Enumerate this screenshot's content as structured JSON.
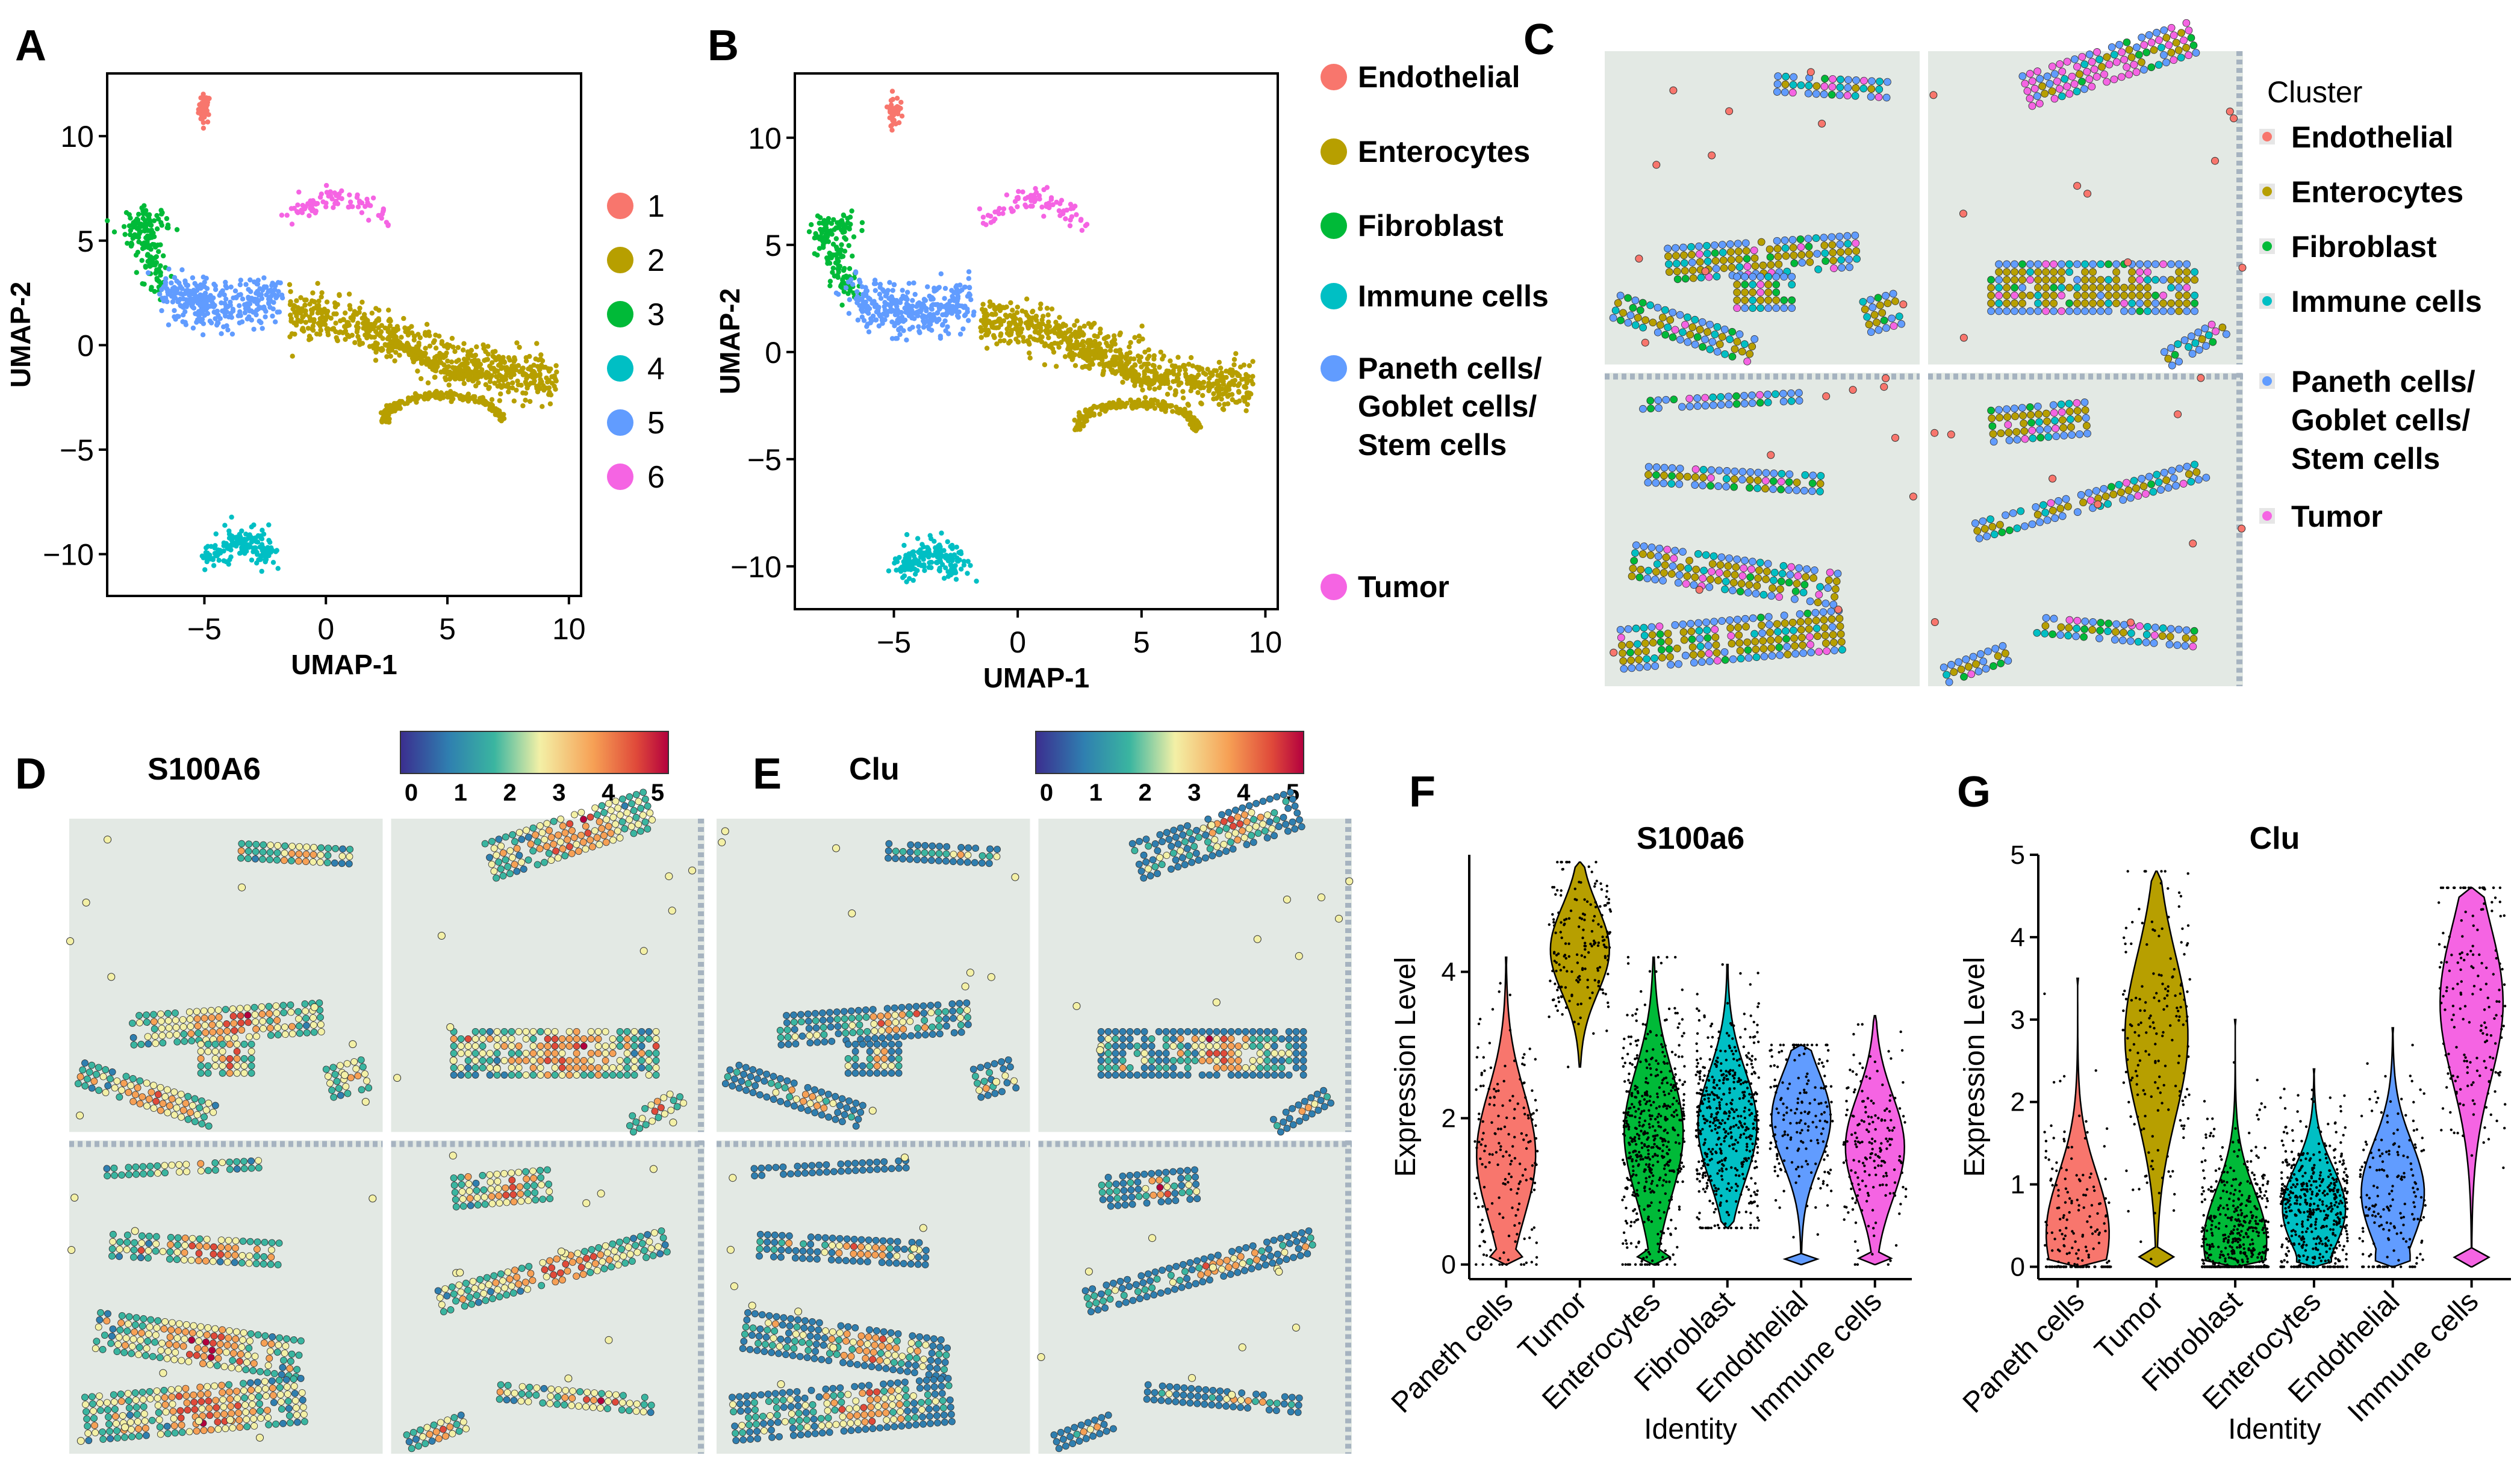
{
  "panel_labels": [
    "A",
    "B",
    "C",
    "D",
    "E",
    "F",
    "G"
  ],
  "colors": {
    "Endothelial": "#F8766D",
    "Enterocytes": "#B79F00",
    "Fibroblast": "#00BA38",
    "Immune cells": "#00BFC4",
    "Paneth": "#619CFF",
    "Tumor": "#F564E3",
    "tissue": "#dfe6e1"
  },
  "legend_B": {
    "items": [
      "Endothelial",
      "Enterocytes",
      "Fibroblast",
      "Immune cells",
      "Paneth cells/",
      "Goblet cells/",
      "Stem cells",
      "Tumor"
    ]
  },
  "legend_C": {
    "title": "Cluster",
    "items": [
      "Endothelial",
      "Enterocytes",
      "Fibroblast",
      "Immune cells",
      "Paneth cells/",
      "Goblet cells/",
      "Stem cells",
      "Tumor"
    ]
  },
  "legend_A": {
    "items": [
      "1",
      "2",
      "3",
      "4",
      "5",
      "6"
    ]
  },
  "spatial": {
    "D_title": "S100A6",
    "E_title": "Clu",
    "colorbar_ticks": [
      "0",
      "1",
      "2",
      "3",
      "4",
      "5"
    ]
  },
  "chart_data": [
    {
      "id": "A",
      "type": "scatter",
      "title": "",
      "xlabel": "UMAP-1",
      "ylabel": "UMAP-2",
      "xlim": [
        -9,
        10.5
      ],
      "ylim": [
        -12,
        13
      ],
      "xticks": [
        "−5",
        "0",
        "5",
        "10"
      ],
      "yticks": [
        "10",
        "5",
        "0",
        "−5",
        "−10"
      ],
      "xtick_values": [
        -5,
        0,
        5,
        10
      ],
      "ytick_values": [
        10,
        5,
        0,
        -5,
        -10
      ],
      "series": [
        {
          "name": "1",
          "cluster": "Endothelial",
          "centers": [
            [
              -5.0,
              11.4
            ]
          ]
        },
        {
          "name": "2",
          "cluster": "Enterocytes",
          "centers": [
            [
              0.0,
              0.8
            ],
            [
              3.0,
              -0.3
            ],
            [
              6.0,
              -1.6
            ],
            [
              8.5,
              -1.5
            ],
            [
              4.0,
              -3.0
            ]
          ]
        },
        {
          "name": "3",
          "cluster": "Fibroblast",
          "centers": [
            [
              -7.4,
              5.6
            ],
            [
              -6.8,
              4.0
            ]
          ]
        },
        {
          "name": "4",
          "cluster": "Immune cells",
          "centers": [
            [
              -3.3,
              -9.8
            ],
            [
              -4.5,
              -10.6
            ]
          ]
        },
        {
          "name": "5",
          "cluster": "Paneth",
          "centers": [
            [
              -5.3,
              2.0
            ],
            [
              -3.0,
              1.8
            ],
            [
              -2.2,
              2.4
            ]
          ]
        },
        {
          "name": "6",
          "cluster": "Tumor",
          "centers": [
            [
              1.2,
              7.3
            ],
            [
              0.5,
              6.9
            ],
            [
              2.0,
              6.2
            ]
          ]
        }
      ]
    },
    {
      "id": "B",
      "type": "scatter",
      "title": "",
      "xlabel": "UMAP-1",
      "ylabel": "UMAP-2",
      "xlim": [
        -9,
        10.5
      ],
      "ylim": [
        -12,
        13
      ],
      "xticks": [
        "−5",
        "0",
        "5",
        "10"
      ],
      "yticks": [
        "10",
        "5",
        "0",
        "−5",
        "−10"
      ],
      "xtick_values": [
        -5,
        0,
        5,
        10
      ],
      "ytick_values": [
        10,
        5,
        0,
        -5,
        -10
      ],
      "series": [
        {
          "name": "Endothelial",
          "cluster": "Endothelial",
          "centers": [
            [
              -5.0,
              11.4
            ]
          ]
        },
        {
          "name": "Enterocytes",
          "cluster": "Enterocytes",
          "centers": [
            [
              0.0,
              0.8
            ],
            [
              3.0,
              -0.3
            ],
            [
              6.0,
              -1.6
            ],
            [
              8.5,
              -1.5
            ],
            [
              4.0,
              -3.0
            ]
          ]
        },
        {
          "name": "Fibroblast",
          "cluster": "Fibroblast",
          "centers": [
            [
              -7.4,
              5.6
            ],
            [
              -6.8,
              4.0
            ]
          ]
        },
        {
          "name": "Immune cells",
          "cluster": "Immune cells",
          "centers": [
            [
              -3.3,
              -9.8
            ],
            [
              -4.5,
              -10.6
            ]
          ]
        },
        {
          "name": "Paneth cells/Goblet cells/Stem cells",
          "cluster": "Paneth",
          "centers": [
            [
              -5.3,
              2.0
            ],
            [
              -3.0,
              1.8
            ],
            [
              -2.2,
              2.4
            ]
          ]
        },
        {
          "name": "Tumor",
          "cluster": "Tumor",
          "centers": [
            [
              1.2,
              7.3
            ],
            [
              0.5,
              6.9
            ],
            [
              2.0,
              6.2
            ]
          ]
        }
      ]
    },
    {
      "id": "F",
      "type": "violin",
      "title": "S100a6",
      "xlabel": "Identity",
      "ylabel": "Expression Level",
      "ylim": [
        -0.2,
        5.6
      ],
      "yticks": [
        "0",
        "2",
        "4"
      ],
      "ytick_values": [
        0,
        2,
        4
      ],
      "categories": [
        "Paneth cells",
        "Tumor",
        "Enterocytes",
        "Fibroblast",
        "Endothelial",
        "Immune cells"
      ],
      "category_colors": [
        "Endothelial",
        "Enterocytes",
        "Fibroblast",
        "Immune cells",
        "Paneth",
        "Tumor"
      ],
      "medians": [
        1.5,
        4.3,
        1.8,
        1.9,
        2.0,
        1.6
      ],
      "max_values": [
        4.2,
        5.5,
        4.2,
        4.1,
        3.0,
        3.4
      ],
      "min_values": [
        0.0,
        2.7,
        0.0,
        0.5,
        0.0,
        0.0
      ]
    },
    {
      "id": "G",
      "type": "violin",
      "title": "Clu",
      "xlabel": "Identity",
      "ylabel": "Expression Level",
      "ylim": [
        -0.15,
        5.0
      ],
      "yticks": [
        "0",
        "1",
        "2",
        "3",
        "4",
        "5"
      ],
      "ytick_values": [
        0,
        1,
        2,
        3,
        4,
        5
      ],
      "categories": [
        "Paneth cells",
        "Tumor",
        "Fibroblast",
        "Enterocytes",
        "Endothelial",
        "Immune cells"
      ],
      "category_colors": [
        "Endothelial",
        "Enterocytes",
        "Fibroblast",
        "Immune cells",
        "Paneth",
        "Tumor"
      ],
      "medians": [
        0.4,
        2.8,
        0.3,
        0.7,
        0.9,
        3.2
      ],
      "max_values": [
        3.5,
        4.8,
        3.0,
        2.4,
        2.9,
        4.6
      ],
      "min_values": [
        0.0,
        0.0,
        0.0,
        0.0,
        0.0,
        0.0
      ]
    }
  ]
}
